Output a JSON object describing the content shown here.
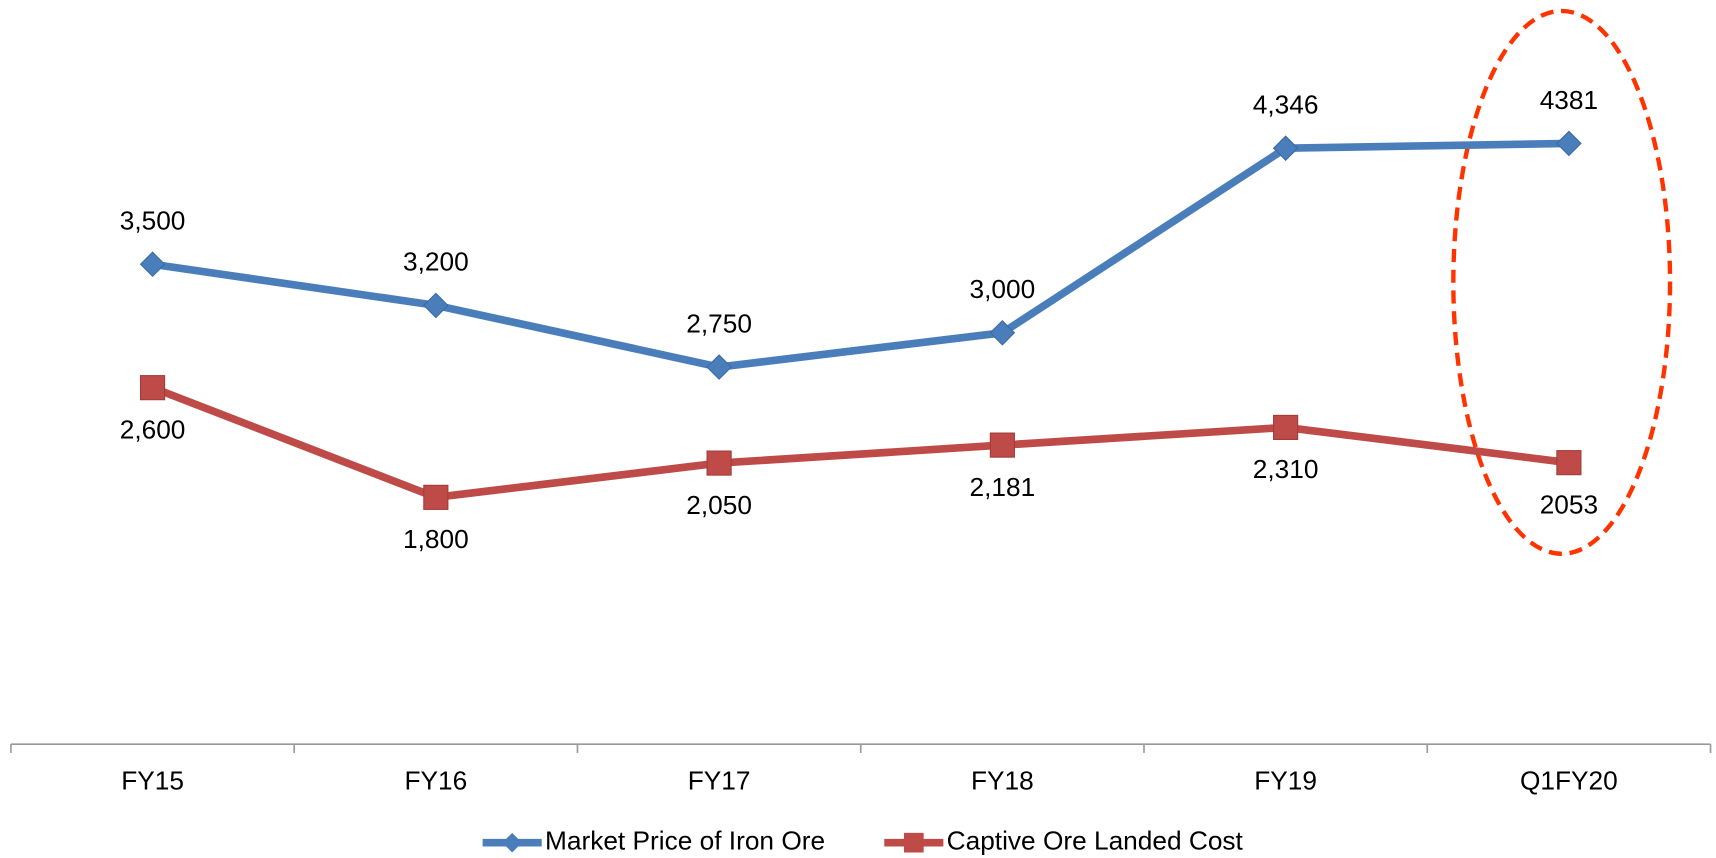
{
  "chart_data": {
    "type": "line",
    "categories": [
      "FY15",
      "FY16",
      "FY17",
      "FY18",
      "FY19",
      "Q1FY20"
    ],
    "series": [
      {
        "name": "Market Price of Iron Ore",
        "color": "#4a7ebb",
        "marker": "diamond",
        "values": [
          3500,
          3200,
          2750,
          3000,
          4346,
          4381
        ],
        "value_labels": [
          "3,500",
          "3,200",
          "2,750",
          "3,000",
          "4,346",
          "4381"
        ]
      },
      {
        "name": "Captive Ore Landed Cost",
        "color": "#be4b48",
        "marker": "square",
        "values": [
          2600,
          1800,
          2050,
          2181,
          2310,
          2053
        ],
        "value_labels": [
          "2,600",
          "1,800",
          "2,050",
          "2,181",
          "2,310",
          "2053"
        ]
      }
    ],
    "legend": "bottom"
  }
}
